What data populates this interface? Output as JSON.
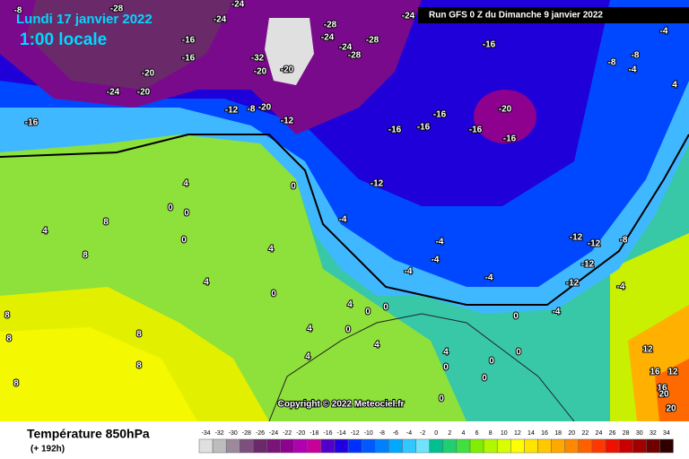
{
  "header": {
    "date": "Lundi 17 janvier 2022",
    "time": "1:00 locale",
    "run": "Run GFS 0 Z du Dimanche 9 janvier 2022"
  },
  "map": {
    "copyright": "Copyright © 2022 Meteociel.fr",
    "labels": [
      "-8",
      "-28",
      "-24",
      "-24",
      "-16",
      "-16",
      "-20",
      "-24",
      "-20",
      "-16",
      "-28",
      "-24",
      "-24",
      "-28",
      "-28",
      "-24",
      "-16",
      "-32",
      "-20",
      "-20",
      "-20",
      "-12",
      "-8",
      "-12",
      "-16",
      "-16",
      "-16",
      "-16",
      "-20",
      "-16",
      "-12",
      "0",
      "4",
      "0",
      "0",
      "0",
      "4",
      "8",
      "8",
      "4",
      "4",
      "0",
      "-4",
      "-4",
      "-4",
      "-4",
      "-4",
      "-12",
      "-12",
      "-12",
      "-12",
      "-8",
      "-4",
      "-4",
      "0",
      "4",
      "0",
      "0",
      "0",
      "4",
      "4",
      "4",
      "4",
      "0",
      "0",
      "0",
      "0",
      "0",
      "8",
      "8",
      "8",
      "8",
      "8",
      "12",
      "16",
      "12",
      "16",
      "20",
      "20",
      "-4",
      "4",
      "-4",
      "-8",
      "-8"
    ]
  },
  "footer": {
    "title": "Température 850hPa",
    "subtitle": "(+ 192h)"
  },
  "legend": {
    "values": [
      -34,
      -32,
      -30,
      -28,
      -26,
      -24,
      -22,
      -20,
      -18,
      -16,
      -14,
      -12,
      -10,
      -8,
      -6,
      -4,
      -2,
      0,
      2,
      4,
      6,
      8,
      10,
      12,
      14,
      16,
      18,
      20,
      22,
      24,
      26,
      28,
      30,
      32,
      34
    ],
    "colors": [
      "#e0e0e0",
      "#bdbdbd",
      "#9c8a9c",
      "#7e4f7e",
      "#6a2a6a",
      "#7a137a",
      "#8e008e",
      "#b000b0",
      "#c8009a",
      "#5000c8",
      "#2000e0",
      "#0030ff",
      "#0058ff",
      "#0080ff",
      "#00a8ff",
      "#30c8ff",
      "#70e4ff",
      "#00c090",
      "#20d070",
      "#40e040",
      "#80ee00",
      "#b0f800",
      "#d8ff00",
      "#ffff00",
      "#ffe400",
      "#ffc800",
      "#ffa800",
      "#ff8800",
      "#ff6000",
      "#ff3800",
      "#f01000",
      "#c80000",
      "#a00000",
      "#700000",
      "#300000"
    ]
  }
}
